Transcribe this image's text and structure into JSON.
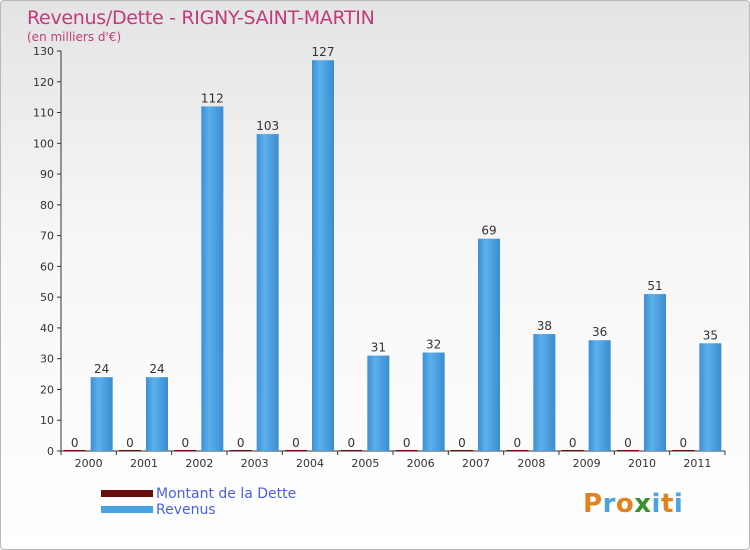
{
  "header": {
    "title": "Revenus/Dette - RIGNY-SAINT-MARTIN",
    "subtitle": "(en milliers d'€)"
  },
  "chart_data": {
    "type": "bar",
    "categories": [
      "2000",
      "2001",
      "2002",
      "2003",
      "2004",
      "2005",
      "2006",
      "2007",
      "2008",
      "2009",
      "2010",
      "2011"
    ],
    "series": [
      {
        "name": "Montant de la Dette",
        "values": [
          0,
          0,
          0,
          0,
          0,
          0,
          0,
          0,
          0,
          0,
          0,
          0
        ],
        "color": "#6b0d0d"
      },
      {
        "name": "Revenus",
        "values": [
          24,
          24,
          112,
          103,
          127,
          31,
          32,
          69,
          38,
          36,
          51,
          35
        ],
        "color": "#4aa3e3"
      }
    ],
    "ylim": [
      0,
      130
    ],
    "yticks": [
      0,
      10,
      20,
      30,
      40,
      50,
      60,
      70,
      80,
      90,
      100,
      110,
      120,
      130
    ],
    "grid": false,
    "legend": "bottom-left"
  },
  "legend": {
    "items": [
      {
        "label": "Montant de la Dette",
        "color": "#6b0d0d"
      },
      {
        "label": "Revenus",
        "color": "#4aa3e3"
      }
    ]
  },
  "logo": {
    "letters": [
      "P",
      "r",
      "o",
      "x",
      "i",
      "t",
      "i"
    ],
    "colors": [
      "#e0821e",
      "#4aa3e3",
      "#e0821e",
      "#3a8f2e",
      "#4aa3e3",
      "#e0821e",
      "#4aa3e3"
    ]
  }
}
